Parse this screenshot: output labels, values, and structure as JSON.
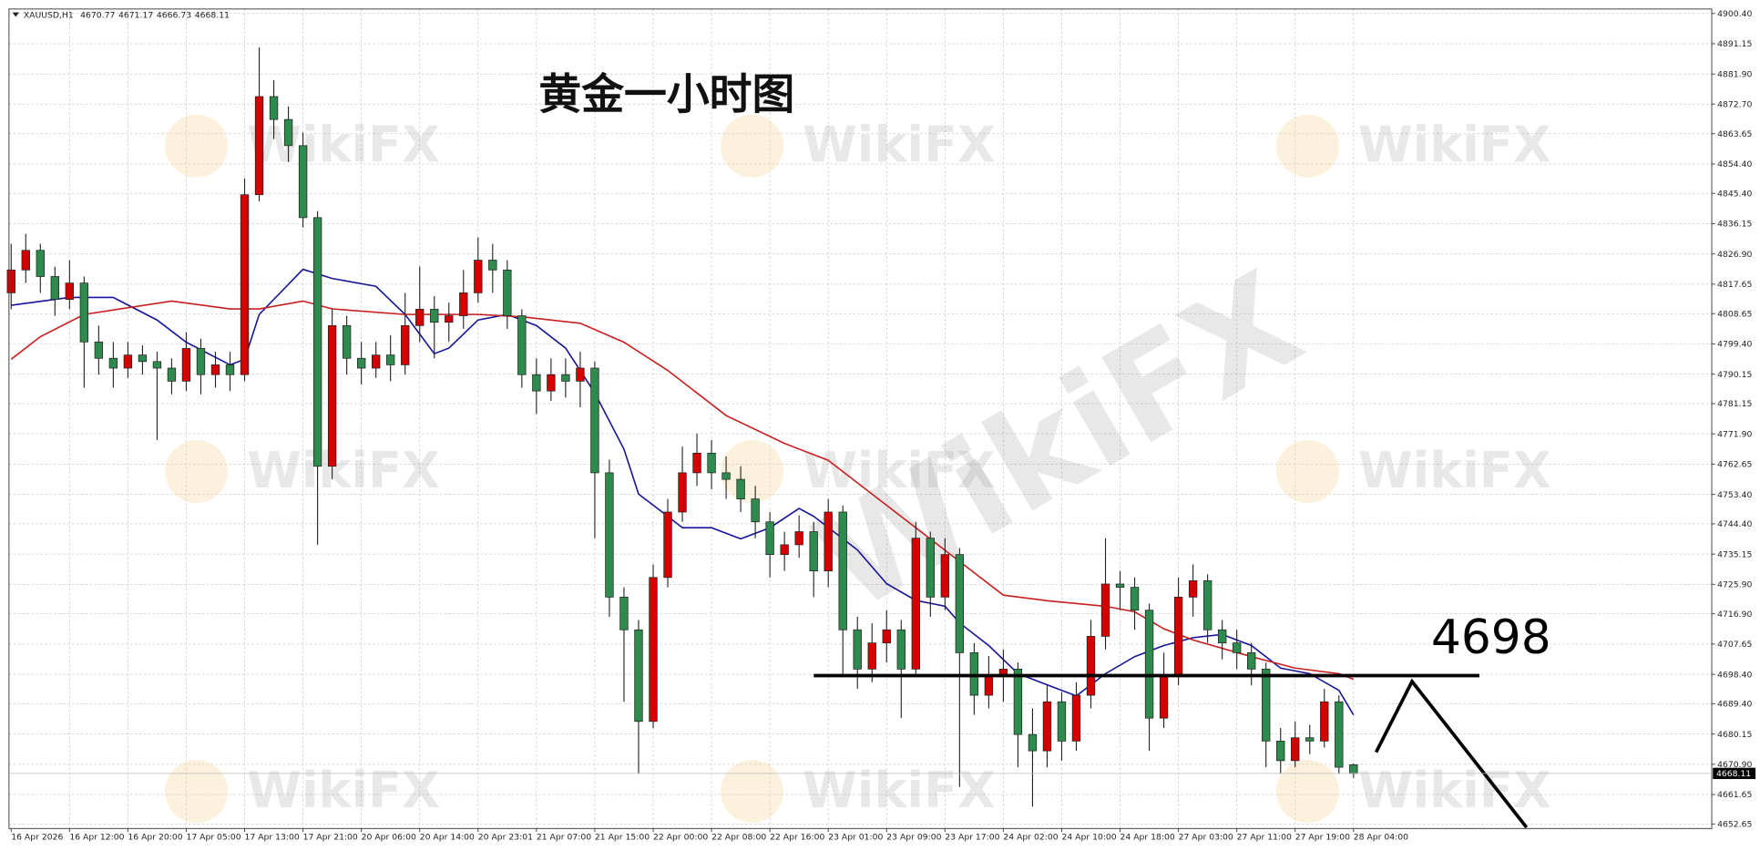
{
  "chart_data": {
    "type": "candlestick",
    "title": "黄金一小时图",
    "symbol": "XAUUSD,H1",
    "watermark": "WikiFX",
    "level": 4698,
    "up_color": "#d40000",
    "down_color": "#2e8b4e",
    "grid": true,
    "x": [
      0,
      1,
      2,
      3,
      4,
      5,
      6,
      7,
      8,
      9,
      10,
      11,
      12,
      13,
      14,
      15,
      16,
      17,
      18,
      19,
      20,
      21,
      22,
      23,
      24,
      25,
      26,
      27,
      28,
      29,
      30,
      31,
      32,
      33,
      34,
      35,
      36,
      37,
      38,
      39,
      40,
      41,
      42,
      43,
      44,
      45,
      46,
      47,
      48,
      49,
      50,
      51,
      52,
      53,
      54,
      55,
      56,
      57,
      58,
      59,
      60,
      61,
      62,
      63,
      64,
      65,
      66,
      67,
      68,
      69,
      70,
      71,
      72,
      73,
      74,
      75,
      76,
      77,
      78,
      79,
      80,
      81,
      82,
      83,
      84,
      85,
      86,
      87,
      88,
      89,
      90,
      91,
      92
    ],
    "open": [
      4815,
      4822,
      4828,
      4820,
      4813,
      4818,
      4800,
      4795,
      4792,
      4796,
      4794,
      4792,
      4788,
      4798,
      4790,
      4793,
      4790,
      4845,
      4875,
      4868,
      4860,
      4838,
      4762,
      4805,
      4795,
      4792,
      4796,
      4793,
      4805,
      4810,
      4806,
      4808,
      4815,
      4825,
      4822,
      4808,
      4790,
      4785,
      4790,
      4788,
      4792,
      4760,
      4722,
      4712,
      4684,
      4728,
      4748,
      4760,
      4766,
      4760,
      4758,
      4752,
      4745,
      4735,
      4738,
      4742,
      4730,
      4748,
      4712,
      4700,
      4708,
      4712,
      4700,
      4740,
      4722,
      4735,
      4705,
      4692,
      4698,
      4700,
      4680,
      4675,
      4690,
      4678,
      4692,
      4710,
      4726,
      4725,
      4718,
      4685,
      4698,
      4722,
      4727,
      4712,
      4708,
      4705,
      4700,
      4678,
      4672,
      4679,
      4678,
      4690,
      4670.77
    ],
    "high": [
      4830,
      4833,
      4830,
      4823,
      4825,
      4820,
      4805,
      4800,
      4800,
      4799,
      4797,
      4795,
      4803,
      4801,
      4797,
      4797,
      4850,
      4890,
      4880,
      4872,
      4864,
      4840,
      4810,
      4808,
      4800,
      4800,
      4802,
      4815,
      4823,
      4814,
      4812,
      4822,
      4832,
      4830,
      4825,
      4810,
      4795,
      4795,
      4795,
      4797,
      4794,
      4764,
      4725,
      4715,
      4732,
      4752,
      4768,
      4772,
      4770,
      4765,
      4762,
      4756,
      4748,
      4742,
      4747,
      4745,
      4752,
      4750,
      4716,
      4714,
      4718,
      4715,
      4745,
      4742,
      4740,
      4737,
      4708,
      4704,
      4706,
      4702,
      4688,
      4695,
      4693,
      4696,
      4715,
      4740,
      4730,
      4728,
      4720,
      4705,
      4728,
      4732,
      4729,
      4715,
      4712,
      4708,
      4702,
      4682,
      4684,
      4683,
      4694,
      4692,
      4671.17
    ],
    "low": [
      4810,
      4818,
      4815,
      4808,
      4810,
      4786,
      4790,
      4786,
      4789,
      4790,
      4770,
      4784,
      4785,
      4784,
      4786,
      4785,
      4788,
      4843,
      4862,
      4855,
      4835,
      4738,
      4758,
      4790,
      4787,
      4789,
      4788,
      4790,
      4800,
      4795,
      4800,
      4804,
      4812,
      4815,
      4804,
      4786,
      4778,
      4782,
      4783,
      4780,
      4740,
      4716,
      4690,
      4668,
      4682,
      4725,
      4745,
      4756,
      4755,
      4752,
      4748,
      4740,
      4728,
      4730,
      4734,
      4722,
      4725,
      4698,
      4694,
      4696,
      4702,
      4685,
      4698,
      4716,
      4718,
      4664,
      4686,
      4688,
      4690,
      4670,
      4658,
      4670,
      4672,
      4675,
      4688,
      4706,
      4718,
      4712,
      4675,
      4682,
      4695,
      4716,
      4708,
      4703,
      4700,
      4695,
      4670,
      4668,
      4670,
      4674,
      4676,
      4668,
      4666.73
    ],
    "close": [
      4822,
      4828,
      4820,
      4813,
      4818,
      4800,
      4795,
      4792,
      4796,
      4794,
      4792,
      4788,
      4798,
      4790,
      4793,
      4790,
      4845,
      4875,
      4868,
      4860,
      4838,
      4762,
      4805,
      4795,
      4792,
      4796,
      4793,
      4805,
      4810,
      4806,
      4808,
      4815,
      4825,
      4822,
      4808,
      4790,
      4785,
      4790,
      4788,
      4792,
      4760,
      4722,
      4712,
      4684,
      4728,
      4748,
      4760,
      4766,
      4760,
      4758,
      4752,
      4745,
      4735,
      4738,
      4742,
      4730,
      4748,
      4712,
      4700,
      4708,
      4712,
      4700,
      4740,
      4722,
      4735,
      4705,
      4692,
      4698,
      4700,
      4680,
      4675,
      4690,
      4678,
      4692,
      4710,
      4726,
      4725,
      4718,
      4685,
      4698,
      4722,
      4727,
      4712,
      4708,
      4705,
      4700,
      4678,
      4672,
      4679,
      4678,
      4690,
      4670,
      4668.11
    ],
    "series": [
      {
        "color": "#15159a",
        "x": [
          0,
          4,
          7,
          10,
          12,
          15,
          16,
          17,
          20,
          22,
          25,
          27,
          29,
          30,
          32,
          34,
          36,
          38,
          40,
          42,
          43,
          45,
          46,
          48,
          50,
          52,
          54,
          55,
          58,
          60,
          62,
          64,
          65,
          67,
          69,
          71,
          73,
          75,
          77,
          79,
          81,
          83,
          85,
          87,
          89,
          91,
          92
        ],
        "values": [
          4811.2,
          4813.6,
          4813.6,
          4806.7,
          4799.9,
          4793.0,
          4794.7,
          4808.4,
          4822.2,
          4819.4,
          4817.0,
          4808.4,
          4796.4,
          4798.1,
          4806.7,
          4808.4,
          4805.0,
          4798.1,
          4784.4,
          4767.2,
          4753.5,
          4746.7,
          4743.2,
          4743.2,
          4739.8,
          4743.2,
          4749.1,
          4746.7,
          4736.4,
          4726.1,
          4721.0,
          4719.2,
          4714.1,
          4707.2,
          4698.6,
          4695.2,
          4691.8,
          4698.6,
          4703.8,
          4707.2,
          4709.6,
          4710.6,
          4707.2,
          4700.3,
          4698.6,
          4693.5,
          4686.0
        ]
      },
      {
        "color": "#c81e1e",
        "x": [
          0,
          2,
          5,
          11,
          15,
          17,
          20,
          22,
          27,
          32,
          35,
          39,
          42,
          45,
          49,
          53,
          56,
          59,
          62,
          65,
          68,
          71,
          75,
          77,
          79,
          81,
          85,
          88,
          91,
          92
        ],
        "values": [
          4794.7,
          4801.6,
          4808.4,
          4812.5,
          4810.1,
          4810.1,
          4812.5,
          4810.1,
          4808.4,
          4808.4,
          4807.7,
          4805.7,
          4799.9,
          4791.3,
          4777.5,
          4769.0,
          4763.8,
          4753.5,
          4743.2,
          4732.9,
          4722.6,
          4720.9,
          4719.2,
          4717.5,
          4712.3,
          4708.9,
          4703.8,
          4700.3,
          4698.6,
          4696.9
        ]
      }
    ],
    "xlim": [
      -0.15,
      116.55
    ],
    "ylim": [
      4651.26,
      4901.77
    ],
    "xticks": [
      {
        "value": 0,
        "label": "16 Apr 2026"
      },
      {
        "value": 4,
        "label": "16 Apr 12:00"
      },
      {
        "value": 8,
        "label": "16 Apr 20:00"
      },
      {
        "value": 12,
        "label": "17 Apr 05:00"
      },
      {
        "value": 16,
        "label": "17 Apr 13:00"
      },
      {
        "value": 20,
        "label": "17 Apr 21:00"
      },
      {
        "value": 24,
        "label": "20 Apr 06:00"
      },
      {
        "value": 28,
        "label": "20 Apr 14:00"
      },
      {
        "value": 32,
        "label": "20 Apr 23:01"
      },
      {
        "value": 36,
        "label": "21 Apr 07:00"
      },
      {
        "value": 40,
        "label": "21 Apr 15:00"
      },
      {
        "value": 44,
        "label": "22 Apr 00:00"
      },
      {
        "value": 48,
        "label": "22 Apr 08:00"
      },
      {
        "value": 52,
        "label": "22 Apr 16:00"
      },
      {
        "value": 56,
        "label": "23 Apr 01:00"
      },
      {
        "value": 60,
        "label": "23 Apr 09:00"
      },
      {
        "value": 64,
        "label": "23 Apr 17:00"
      },
      {
        "value": 68,
        "label": "24 Apr 02:00"
      },
      {
        "value": 72,
        "label": "24 Apr 10:00"
      },
      {
        "value": 76,
        "label": "24 Apr 18:00"
      },
      {
        "value": 80,
        "label": "27 Apr 03:00"
      },
      {
        "value": 84,
        "label": "27 Apr 11:00"
      },
      {
        "value": 88,
        "label": "27 Apr 19:00"
      },
      {
        "value": 92,
        "label": "28 Apr 04:00"
      }
    ],
    "yticks": [
      {
        "value": 4900.4,
        "label": "4900.40"
      },
      4891.15,
      {
        "value": 4881.9,
        "label": "4881.90"
      },
      {
        "value": 4872.7,
        "label": "4872.70"
      },
      4863.65,
      {
        "value": 4854.4,
        "label": "4854.40"
      },
      {
        "value": 4845.4,
        "label": "4845.40"
      },
      4836.15,
      {
        "value": 4826.9,
        "label": "4826.90"
      },
      4817.65,
      4808.65,
      {
        "value": 4799.4,
        "label": "4799.40"
      },
      4790.15,
      4781.15,
      {
        "value": 4771.9,
        "label": "4771.90"
      },
      4762.65,
      {
        "value": 4753.4,
        "label": "4753.40"
      },
      {
        "value": 4744.4,
        "label": "4744.40"
      },
      4735.15,
      {
        "value": 4725.9,
        "label": "4725.90"
      },
      {
        "value": 4716.9,
        "label": "4716.90"
      },
      4707.65,
      {
        "value": 4698.4,
        "label": "4698.40"
      },
      {
        "value": 4689.4,
        "label": "4689.40"
      },
      4680.15,
      {
        "value": 4670.9,
        "label": "4670.90"
      },
      4661.65,
      4652.65
    ]
  }
}
